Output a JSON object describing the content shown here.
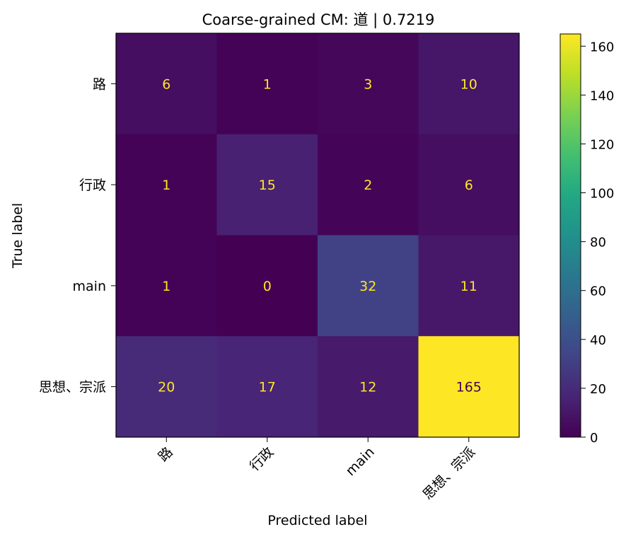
{
  "chart_data": {
    "type": "heatmap",
    "title": "Coarse-grained CM: 道 | 0.7219",
    "xlabel": "Predicted label",
    "ylabel": "True label",
    "x_categories": [
      "路",
      "行政",
      "main",
      "思想、宗派"
    ],
    "y_categories": [
      "路",
      "行政",
      "main",
      "思想、宗派"
    ],
    "matrix": [
      [
        6,
        1,
        3,
        10
      ],
      [
        1,
        15,
        2,
        6
      ],
      [
        1,
        0,
        32,
        11
      ],
      [
        20,
        17,
        12,
        165
      ]
    ],
    "colormap": "viridis",
    "colorbar": {
      "range": [
        0,
        165
      ],
      "ticks": [
        0,
        20,
        40,
        60,
        80,
        100,
        120,
        140,
        160
      ]
    },
    "x_tick_rotation": "45 degrees",
    "grid": false
  }
}
